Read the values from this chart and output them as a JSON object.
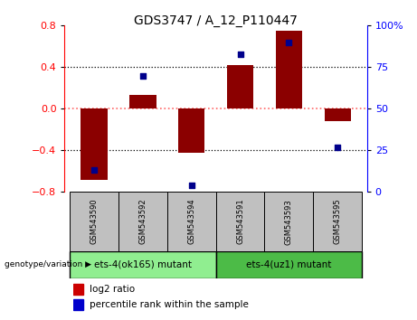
{
  "title": "GDS3747 / A_12_P110447",
  "samples": [
    "GSM543590",
    "GSM543592",
    "GSM543594",
    "GSM543591",
    "GSM543593",
    "GSM543595"
  ],
  "log2_ratios": [
    -0.68,
    0.13,
    -0.42,
    0.42,
    0.75,
    -0.12
  ],
  "percentile_ranks": [
    13,
    70,
    4,
    83,
    90,
    27
  ],
  "groups": [
    {
      "label": "ets-4(ok165) mutant",
      "color": "#90EE90"
    },
    {
      "label": "ets-4(uz1) mutant",
      "color": "#4CBB47"
    }
  ],
  "ylim_left": [
    -0.8,
    0.8
  ],
  "ylim_right": [
    0,
    100
  ],
  "left_yticks": [
    -0.8,
    -0.4,
    0.0,
    0.4,
    0.8
  ],
  "right_yticks": [
    0,
    25,
    50,
    75,
    100
  ],
  "bar_color": "#8B0000",
  "dot_color": "#00008B",
  "zero_line_color": "#FF6666",
  "grid_color": "#000000",
  "group_box_bg": "#C0C0C0",
  "bar_width": 0.55,
  "legend_bar_color": "#CC0000",
  "legend_dot_color": "#0000CC"
}
